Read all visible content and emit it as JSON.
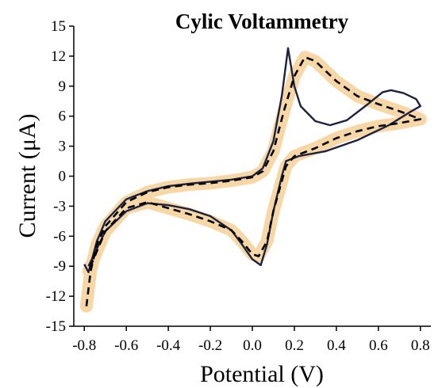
{
  "chart_data": {
    "type": "line",
    "title": "Cylic Voltammetry",
    "xlabel": "Potential (V)",
    "ylabel": "Current (μA)",
    "xlim": [
      -0.85,
      0.85
    ],
    "ylim": [
      -15,
      15
    ],
    "x_ticks": [
      "-0.8",
      "-0.6",
      "-0.4",
      "-0.2",
      "0.0",
      "0.2",
      "0.4",
      "0.6",
      "0.8"
    ],
    "y_ticks": [
      "15",
      "12",
      "9",
      "6",
      "3",
      "0",
      "-3",
      "-6",
      "-9",
      "-12",
      "-15"
    ],
    "grid": false,
    "legend": "none",
    "colors": {
      "solid": "#1c2240",
      "dashed": "#000000",
      "band": "#f5c98a"
    },
    "series": [
      {
        "style": "solid",
        "points": [
          [
            -0.8,
            -8.8
          ],
          [
            -0.78,
            -9.6
          ],
          [
            -0.74,
            -6.5
          ],
          [
            -0.7,
            -4.5
          ],
          [
            -0.6,
            -2.3
          ],
          [
            -0.5,
            -1.5
          ],
          [
            -0.4,
            -1.0
          ],
          [
            -0.3,
            -0.75
          ],
          [
            -0.2,
            -0.55
          ],
          [
            -0.1,
            -0.35
          ],
          [
            0.0,
            0.0
          ],
          [
            0.05,
            0.8
          ],
          [
            0.1,
            3.5
          ],
          [
            0.14,
            8.0
          ],
          [
            0.17,
            12.8
          ],
          [
            0.2,
            9.0
          ],
          [
            0.23,
            7.0
          ],
          [
            0.3,
            5.5
          ],
          [
            0.37,
            5.1
          ],
          [
            0.45,
            5.6
          ],
          [
            0.55,
            7.2
          ],
          [
            0.62,
            8.4
          ],
          [
            0.66,
            8.6
          ],
          [
            0.72,
            8.3
          ],
          [
            0.78,
            7.7
          ],
          [
            0.8,
            7.0
          ],
          [
            0.75,
            6.4
          ],
          [
            0.65,
            5.1
          ],
          [
            0.5,
            3.6
          ],
          [
            0.35,
            2.5
          ],
          [
            0.22,
            2.0
          ],
          [
            0.16,
            1.5
          ],
          [
            0.14,
            0.0
          ],
          [
            0.1,
            -3.5
          ],
          [
            0.07,
            -6.8
          ],
          [
            0.04,
            -8.9
          ],
          [
            0.0,
            -8.3
          ],
          [
            -0.05,
            -6.8
          ],
          [
            -0.1,
            -5.4
          ],
          [
            -0.2,
            -4.0
          ],
          [
            -0.3,
            -3.3
          ],
          [
            -0.4,
            -2.9
          ],
          [
            -0.5,
            -2.7
          ],
          [
            -0.6,
            -3.5
          ],
          [
            -0.7,
            -5.5
          ],
          [
            -0.78,
            -9.0
          ]
        ]
      },
      {
        "style": "dashed",
        "points": [
          [
            -0.79,
            -13.0
          ],
          [
            -0.77,
            -9.5
          ],
          [
            -0.74,
            -6.8
          ],
          [
            -0.7,
            -5.0
          ],
          [
            -0.6,
            -2.6
          ],
          [
            -0.5,
            -1.6
          ],
          [
            -0.4,
            -1.1
          ],
          [
            -0.3,
            -0.85
          ],
          [
            -0.2,
            -0.7
          ],
          [
            -0.1,
            -0.45
          ],
          [
            0.0,
            -0.1
          ],
          [
            0.05,
            0.5
          ],
          [
            0.1,
            2.5
          ],
          [
            0.15,
            6.5
          ],
          [
            0.2,
            10.0
          ],
          [
            0.25,
            11.9
          ],
          [
            0.3,
            11.5
          ],
          [
            0.4,
            9.5
          ],
          [
            0.5,
            8.0
          ],
          [
            0.6,
            7.2
          ],
          [
            0.7,
            6.5
          ],
          [
            0.8,
            5.7
          ],
          [
            0.7,
            5.3
          ],
          [
            0.6,
            5.0
          ],
          [
            0.5,
            4.5
          ],
          [
            0.4,
            3.8
          ],
          [
            0.3,
            2.8
          ],
          [
            0.2,
            2.0
          ],
          [
            0.16,
            1.0
          ],
          [
            0.14,
            -0.5
          ],
          [
            0.1,
            -3.5
          ],
          [
            0.07,
            -6.5
          ],
          [
            0.03,
            -8.0
          ],
          [
            0.0,
            -7.8
          ],
          [
            -0.05,
            -6.5
          ],
          [
            -0.1,
            -5.4
          ],
          [
            -0.2,
            -4.5
          ],
          [
            -0.3,
            -3.8
          ],
          [
            -0.4,
            -3.2
          ],
          [
            -0.5,
            -2.6
          ],
          [
            -0.6,
            -3.2
          ],
          [
            -0.7,
            -5.5
          ],
          [
            -0.78,
            -9.5
          ]
        ]
      }
    ]
  }
}
